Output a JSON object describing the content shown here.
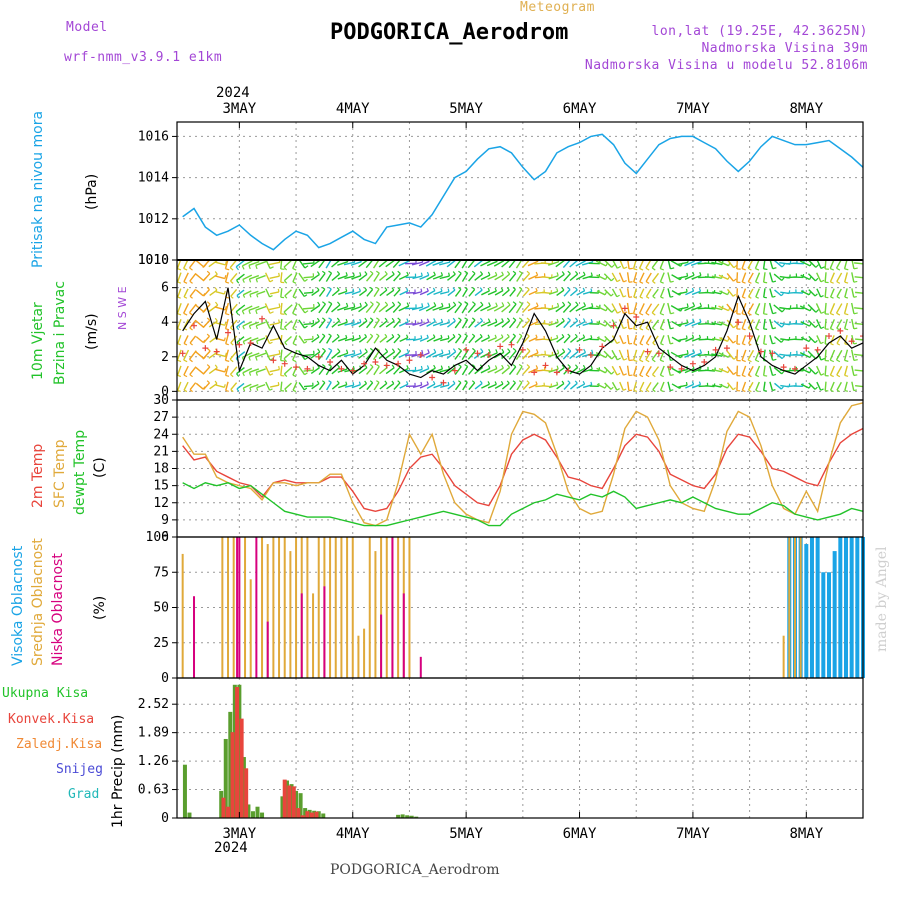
{
  "header": {
    "model_label": "Model",
    "model_name": "wrf-nmm_v3.9.1 e1km",
    "meteogram_label": "Meteogram",
    "station_title": "PODGORICA_Aerodrom",
    "lonlat": "lon,lat (19.25E, 42.3625N)",
    "elevation": "Nadmorska Visina 39m",
    "model_elevation": "Nadmorska Visina u modelu 52.8106m",
    "footer_station": "PODGORICA_Aerodrom",
    "credit": "made by Angel"
  },
  "colors": {
    "pressure": "#1aa4e6",
    "wind_label": "#22c32a",
    "temp2m": "#e8453c",
    "sfc_temp": "#e0a93a",
    "dewpt": "#22c32a",
    "cloud_high": "#1aa4e6",
    "cloud_mid": "#e0a93a",
    "cloud_low": "#d6007e",
    "precip_total": "#5a9e2e",
    "precip_conv": "#e8453c",
    "precip_frozen": "#f08a36",
    "precip_snow": "#4b4bd6",
    "precip_grad": "#22b8b8",
    "purple_text": "#a347d6",
    "orange_text": "#e0b052"
  },
  "chart_data": [
    {
      "type": "line",
      "panel": "pressure",
      "ylabel": [
        "Pritisak na nivou mora",
        "(hPa)"
      ],
      "yticks": [
        1010,
        1012,
        1014,
        1016
      ],
      "ylim": [
        1010,
        1016.7
      ],
      "x": [
        2.5,
        2.6,
        2.7,
        2.8,
        2.9,
        3.0,
        3.1,
        3.2,
        3.3,
        3.4,
        3.5,
        3.6,
        3.7,
        3.8,
        3.9,
        4.0,
        4.1,
        4.2,
        4.3,
        4.4,
        4.5,
        4.6,
        4.7,
        4.8,
        4.9,
        5.0,
        5.1,
        5.2,
        5.3,
        5.4,
        5.5,
        5.6,
        5.7,
        5.8,
        5.9,
        6.0,
        6.1,
        6.2,
        6.3,
        6.4,
        6.5,
        6.6,
        6.7,
        6.8,
        6.9,
        7.0,
        7.1,
        7.2,
        7.3,
        7.4,
        7.5,
        7.6,
        7.7,
        7.8,
        7.9,
        8.0,
        8.1,
        8.2,
        8.3,
        8.4,
        8.5
      ],
      "values": [
        1012.1,
        1012.5,
        1011.6,
        1011.2,
        1011.4,
        1011.7,
        1011.2,
        1010.8,
        1010.5,
        1011.0,
        1011.4,
        1011.2,
        1010.6,
        1010.8,
        1011.1,
        1011.4,
        1011.0,
        1010.8,
        1011.6,
        1011.7,
        1011.8,
        1011.6,
        1012.2,
        1013.1,
        1014.0,
        1014.3,
        1014.9,
        1015.4,
        1015.5,
        1015.2,
        1014.5,
        1013.9,
        1014.3,
        1015.2,
        1015.5,
        1015.7,
        1016.0,
        1016.1,
        1015.6,
        1014.7,
        1014.2,
        1014.9,
        1015.6,
        1015.9,
        1016.0,
        1016.0,
        1015.7,
        1015.4,
        1014.8,
        1014.3,
        1014.8,
        1015.5,
        1016.0,
        1015.8,
        1015.6,
        1015.6,
        1015.7,
        1015.8,
        1015.4,
        1015.0,
        1014.5
      ]
    },
    {
      "type": "line",
      "panel": "wind",
      "ylabel": [
        "10m Vjetar",
        "Brzina i Pravac",
        "(m/s)"
      ],
      "compass": "N S W E",
      "yticks": [
        0,
        2,
        4,
        6
      ],
      "ylim": [
        -0.5,
        7.6
      ],
      "top_tick_label": "1010",
      "x": [
        2.5,
        2.6,
        2.7,
        2.8,
        2.9,
        3.0,
        3.1,
        3.2,
        3.3,
        3.4,
        3.5,
        3.6,
        3.7,
        3.8,
        3.9,
        4.0,
        4.1,
        4.2,
        4.3,
        4.4,
        4.5,
        4.6,
        4.7,
        4.8,
        4.9,
        5.0,
        5.1,
        5.2,
        5.3,
        5.4,
        5.5,
        5.6,
        5.7,
        5.8,
        5.9,
        6.0,
        6.1,
        6.2,
        6.3,
        6.4,
        6.5,
        6.6,
        6.7,
        6.8,
        6.9,
        7.0,
        7.1,
        7.2,
        7.3,
        7.4,
        7.5,
        7.6,
        7.7,
        7.8,
        7.9,
        8.0,
        8.1,
        8.2,
        8.3,
        8.4,
        8.5
      ],
      "speed": [
        3.5,
        4.5,
        5.2,
        3.0,
        6.0,
        1.2,
        2.8,
        2.5,
        3.8,
        2.5,
        2.2,
        2.0,
        1.5,
        1.2,
        1.8,
        1.0,
        1.5,
        2.5,
        1.8,
        1.5,
        1.0,
        0.8,
        1.2,
        1.0,
        1.5,
        1.8,
        1.2,
        1.8,
        2.2,
        1.5,
        2.8,
        4.5,
        3.5,
        2.0,
        1.2,
        1.0,
        1.5,
        2.5,
        3.0,
        4.5,
        3.8,
        4.0,
        2.5,
        2.0,
        1.5,
        1.2,
        1.5,
        2.0,
        3.5,
        5.5,
        4.0,
        2.0,
        1.5,
        1.2,
        1.0,
        1.5,
        2.0,
        2.8,
        3.2,
        2.5,
        2.8
      ],
      "direction_deg": [
        200,
        220,
        40,
        60,
        210,
        230,
        250,
        250,
        60,
        240,
        200,
        90,
        40,
        30,
        70,
        80,
        50,
        30,
        60,
        40,
        90,
        70,
        60,
        80,
        40,
        30,
        50,
        70,
        60,
        40,
        30,
        70,
        100,
        60,
        40,
        60,
        80,
        120,
        150,
        160,
        200,
        210,
        220,
        160,
        80,
        60,
        90,
        100,
        120,
        190,
        210,
        200,
        160,
        100,
        80,
        120,
        150,
        200,
        210,
        180,
        60
      ],
      "gust": [
        2.2,
        3.8,
        2.5,
        2.3,
        3.4,
        2.7,
        2.8,
        4.2,
        1.8,
        1.6,
        1.4,
        1.3,
        2.0,
        1.7,
        1.3,
        1.2,
        1.6,
        1.7,
        1.5,
        1.6,
        1.8,
        2.1,
        0.8,
        0.5,
        1.2,
        2.4,
        2.2,
        2.1,
        2.6,
        2.7,
        2.4,
        1.1,
        1.5,
        1.1,
        1.2,
        2.4,
        2.1,
        2.6,
        3.8,
        4.8,
        4.3,
        2.3,
        2.2,
        1.4,
        1.3,
        1.6,
        1.7,
        2.4,
        2.5,
        4.0,
        3.2,
        2.3,
        2.2,
        1.4,
        1.3,
        2.5,
        2.4,
        3.2,
        3.5,
        2.9,
        3.2
      ]
    },
    {
      "type": "line",
      "panel": "temperature",
      "ylabel": [
        "2m Temp",
        "SFC Temp",
        "dewpt Temp",
        "(C)"
      ],
      "yticks": [
        6,
        9,
        12,
        15,
        18,
        21,
        24,
        27,
        30
      ],
      "ylim": [
        6,
        30
      ],
      "x": [
        2.5,
        2.6,
        2.7,
        2.8,
        2.9,
        3.0,
        3.1,
        3.2,
        3.3,
        3.4,
        3.5,
        3.6,
        3.7,
        3.8,
        3.9,
        4.0,
        4.1,
        4.2,
        4.3,
        4.4,
        4.5,
        4.6,
        4.7,
        4.8,
        4.9,
        5.0,
        5.1,
        5.2,
        5.3,
        5.4,
        5.5,
        5.6,
        5.7,
        5.8,
        5.9,
        6.0,
        6.1,
        6.2,
        6.3,
        6.4,
        6.5,
        6.6,
        6.7,
        6.8,
        6.9,
        7.0,
        7.1,
        7.2,
        7.3,
        7.4,
        7.5,
        7.6,
        7.7,
        7.8,
        7.9,
        8.0,
        8.1,
        8.2,
        8.3,
        8.4,
        8.5
      ],
      "series": [
        {
          "name": "2m Temp",
          "color_key": "temp2m",
          "values": [
            22.0,
            19.5,
            20.0,
            17.5,
            16.5,
            15.5,
            15.0,
            13.0,
            15.5,
            16.0,
            15.5,
            15.5,
            15.5,
            16.5,
            16.5,
            14.0,
            11.0,
            10.5,
            11.0,
            14.0,
            18.0,
            20.0,
            20.5,
            18.0,
            15.0,
            13.5,
            12.0,
            11.5,
            15.0,
            20.5,
            23.0,
            24.0,
            23.0,
            20.0,
            16.5,
            16.0,
            15.0,
            14.5,
            18.0,
            22.0,
            24.0,
            23.5,
            21.0,
            17.0,
            16.0,
            15.0,
            14.5,
            17.0,
            21.5,
            24.0,
            23.5,
            21.0,
            18.0,
            17.5,
            16.5,
            15.5,
            15.0,
            19.0,
            22.5,
            24.0,
            25.0
          ]
        },
        {
          "name": "SFC Temp",
          "color_key": "sfc_temp",
          "values": [
            23.5,
            20.5,
            20.5,
            16.5,
            15.5,
            15.0,
            14.5,
            12.5,
            15.5,
            15.5,
            15.0,
            15.5,
            15.5,
            17.0,
            17.0,
            12.0,
            8.5,
            8.0,
            9.0,
            15.5,
            24.0,
            20.5,
            24.0,
            17.0,
            12.0,
            10.0,
            9.0,
            8.5,
            14.0,
            24.0,
            28.0,
            27.5,
            26.0,
            20.5,
            14.0,
            11.0,
            10.0,
            10.5,
            17.0,
            25.0,
            28.0,
            27.0,
            23.0,
            15.0,
            12.0,
            11.0,
            10.5,
            16.0,
            24.5,
            28.0,
            27.0,
            22.0,
            15.0,
            11.0,
            10.0,
            14.0,
            10.5,
            19.0,
            26.0,
            29.0,
            29.5
          ]
        },
        {
          "name": "dewpt Temp",
          "color_key": "dewpt",
          "values": [
            15.5,
            14.5,
            15.5,
            15.0,
            15.5,
            14.5,
            15.0,
            13.5,
            12.0,
            10.5,
            10.0,
            9.5,
            9.5,
            9.5,
            9.0,
            8.5,
            8.0,
            8.0,
            8.0,
            8.5,
            9.0,
            9.5,
            10.0,
            10.5,
            10.0,
            9.5,
            9.0,
            8.0,
            8.0,
            10.0,
            11.0,
            12.0,
            12.5,
            13.5,
            13.0,
            12.5,
            13.5,
            13.0,
            14.0,
            13.0,
            11.0,
            11.5,
            12.0,
            12.5,
            12.0,
            13.0,
            12.0,
            11.0,
            10.5,
            10.0,
            10.0,
            11.0,
            12.0,
            11.5,
            10.0,
            9.5,
            9.0,
            9.5,
            10.0,
            11.0,
            10.5
          ]
        }
      ]
    },
    {
      "type": "bar",
      "panel": "cloud",
      "ylabel": [
        "Visoka Oblacnost",
        "Srednja Oblacnost",
        "Niska Oblacnost",
        "(%)"
      ],
      "yticks": [
        0,
        25,
        50,
        75,
        100
      ],
      "ylim": [
        0,
        100
      ],
      "series": [
        {
          "name": "Visoka Oblacnost",
          "color_key": "cloud_high",
          "x": [
            7.85,
            7.9,
            7.95,
            8.0,
            8.05,
            8.1,
            8.15,
            8.2,
            8.25,
            8.3,
            8.35,
            8.4,
            8.45,
            8.5
          ],
          "values": [
            100,
            100,
            100,
            95,
            100,
            100,
            75,
            75,
            90,
            100,
            100,
            100,
            100,
            100
          ]
        },
        {
          "name": "Srednja Oblacnost",
          "color_key": "cloud_mid",
          "x": [
            2.5,
            2.85,
            2.9,
            2.95,
            3.05,
            3.1,
            3.2,
            3.25,
            3.3,
            3.35,
            3.4,
            3.45,
            3.5,
            3.55,
            3.6,
            3.65,
            3.7,
            3.75,
            3.8,
            3.85,
            3.9,
            3.95,
            4.0,
            4.05,
            4.1,
            4.15,
            4.2,
            4.25,
            4.3,
            4.35,
            4.4,
            4.45,
            4.5,
            7.8,
            7.85,
            7.9,
            7.95
          ],
          "values": [
            88,
            100,
            100,
            100,
            100,
            70,
            100,
            95,
            100,
            100,
            100,
            90,
            100,
            100,
            100,
            60,
            100,
            100,
            100,
            100,
            100,
            100,
            100,
            30,
            35,
            100,
            90,
            100,
            100,
            100,
            100,
            100,
            100,
            30,
            100,
            100,
            100
          ]
        },
        {
          "name": "Niska Oblacnost",
          "color_key": "cloud_low",
          "x": [
            2.6,
            2.98,
            3.0,
            3.15,
            3.25,
            3.55,
            3.75,
            4.25,
            4.35,
            4.45,
            4.6
          ],
          "values": [
            58,
            100,
            100,
            100,
            40,
            60,
            65,
            45,
            100,
            60,
            15
          ]
        }
      ]
    },
    {
      "type": "bar",
      "panel": "precip",
      "ylabel": [
        "1hr Precip (mm)"
      ],
      "legend": [
        "Ukupna Kisa",
        "Konvek.Kisa",
        "Zaledj.Kisa",
        "Snijeg",
        "Grad"
      ],
      "yticks": [
        0,
        0.63,
        1.26,
        1.89,
        2.52
      ],
      "ylim": [
        0,
        3.1
      ],
      "series": [
        {
          "name": "Ukupna Kisa",
          "color_key": "precip_total",
          "x": [
            2.52,
            2.56,
            2.84,
            2.88,
            2.92,
            2.96,
            3.0,
            3.04,
            3.08,
            3.12,
            3.16,
            3.2,
            3.38,
            3.42,
            3.46,
            3.5,
            3.54,
            3.58,
            3.62,
            3.66,
            3.7,
            3.74,
            4.4,
            4.44,
            4.48,
            4.52,
            4.56
          ],
          "values": [
            1.18,
            0.12,
            0.6,
            1.75,
            2.35,
            2.95,
            2.95,
            1.35,
            0.3,
            0.15,
            0.25,
            0.12,
            0.48,
            0.83,
            0.75,
            0.6,
            0.55,
            0.22,
            0.18,
            0.16,
            0.15,
            0.1,
            0.07,
            0.08,
            0.06,
            0.05,
            0.03
          ]
        },
        {
          "name": "Konvek.Kisa",
          "color_key": "precip_conv",
          "x": [
            2.86,
            2.9,
            2.94,
            2.98,
            3.02,
            3.06,
            3.4,
            3.44,
            3.48,
            3.52,
            3.56,
            3.6,
            3.64,
            3.68
          ],
          "values": [
            0.45,
            0.25,
            1.9,
            2.9,
            2.2,
            1.1,
            0.85,
            0.72,
            0.7,
            0.22,
            0.06,
            0.15,
            0.12,
            0.14
          ]
        }
      ]
    }
  ],
  "xaxis": {
    "x_domain": [
      2.45,
      8.5
    ],
    "day_labels": [
      "3MAY",
      "4MAY",
      "5MAY",
      "6MAY",
      "7MAY",
      "8MAY"
    ],
    "day_positions": [
      3,
      4,
      5,
      6,
      7,
      8
    ],
    "year_label": "2024"
  }
}
